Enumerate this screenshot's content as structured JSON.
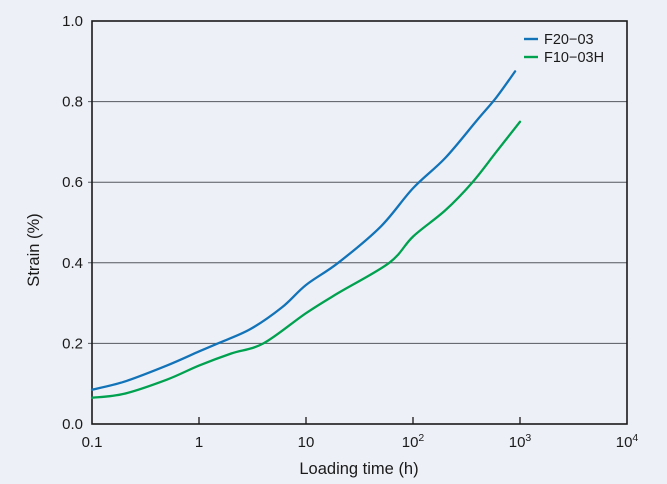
{
  "colors": {
    "background": "#edf0f7",
    "frame": "#1a1a1a",
    "grid": "#55585e",
    "text": "#1a1a1a",
    "series_blue": "#1273b8",
    "series_green": "#00a14f"
  },
  "chart_data": {
    "type": "line",
    "title": "",
    "xlabel": "Loading time (h)",
    "ylabel": "Strain (%)",
    "x_scale": "log10",
    "xlim": [
      0.1,
      10000
    ],
    "ylim": [
      0.0,
      1.0
    ],
    "grid": "horizontal-only",
    "legend_position": "top-right-inside",
    "y_ticks": [
      {
        "value": 0.0,
        "label": "0.0"
      },
      {
        "value": 0.2,
        "label": "0.2"
      },
      {
        "value": 0.4,
        "label": "0.4"
      },
      {
        "value": 0.6,
        "label": "0.6"
      },
      {
        "value": 0.8,
        "label": "0.8"
      },
      {
        "value": 1.0,
        "label": "1.0"
      }
    ],
    "y_gridlines": [
      0.2,
      0.4,
      0.6,
      0.8
    ],
    "x_ticks": [
      {
        "value": 0.1,
        "label": "0.1"
      },
      {
        "value": 1,
        "label": "1"
      },
      {
        "value": 10,
        "label": "10"
      },
      {
        "value": 100,
        "label": "10",
        "sup": "2"
      },
      {
        "value": 1000,
        "label": "10",
        "sup": "3"
      },
      {
        "value": 10000,
        "label": "10",
        "sup": "4"
      }
    ],
    "x_tick_marks": [
      1,
      10,
      100,
      1000
    ],
    "series": [
      {
        "name": "F20−03",
        "color": "#1273b8",
        "points": [
          [
            0.1,
            0.085
          ],
          [
            0.2,
            0.105
          ],
          [
            0.5,
            0.145
          ],
          [
            1,
            0.18
          ],
          [
            1.5,
            0.2
          ],
          [
            3,
            0.235
          ],
          [
            6,
            0.29
          ],
          [
            10,
            0.345
          ],
          [
            20,
            0.4
          ],
          [
            50,
            0.49
          ],
          [
            100,
            0.585
          ],
          [
            200,
            0.66
          ],
          [
            400,
            0.755
          ],
          [
            600,
            0.81
          ],
          [
            900,
            0.875
          ]
        ]
      },
      {
        "name": "F10−03H",
        "color": "#00a14f",
        "points": [
          [
            0.1,
            0.065
          ],
          [
            0.2,
            0.075
          ],
          [
            0.5,
            0.11
          ],
          [
            1,
            0.145
          ],
          [
            2,
            0.175
          ],
          [
            4,
            0.2
          ],
          [
            10,
            0.275
          ],
          [
            20,
            0.325
          ],
          [
            60,
            0.4
          ],
          [
            100,
            0.465
          ],
          [
            200,
            0.53
          ],
          [
            360,
            0.6
          ],
          [
            600,
            0.675
          ],
          [
            1000,
            0.75
          ]
        ]
      }
    ]
  }
}
